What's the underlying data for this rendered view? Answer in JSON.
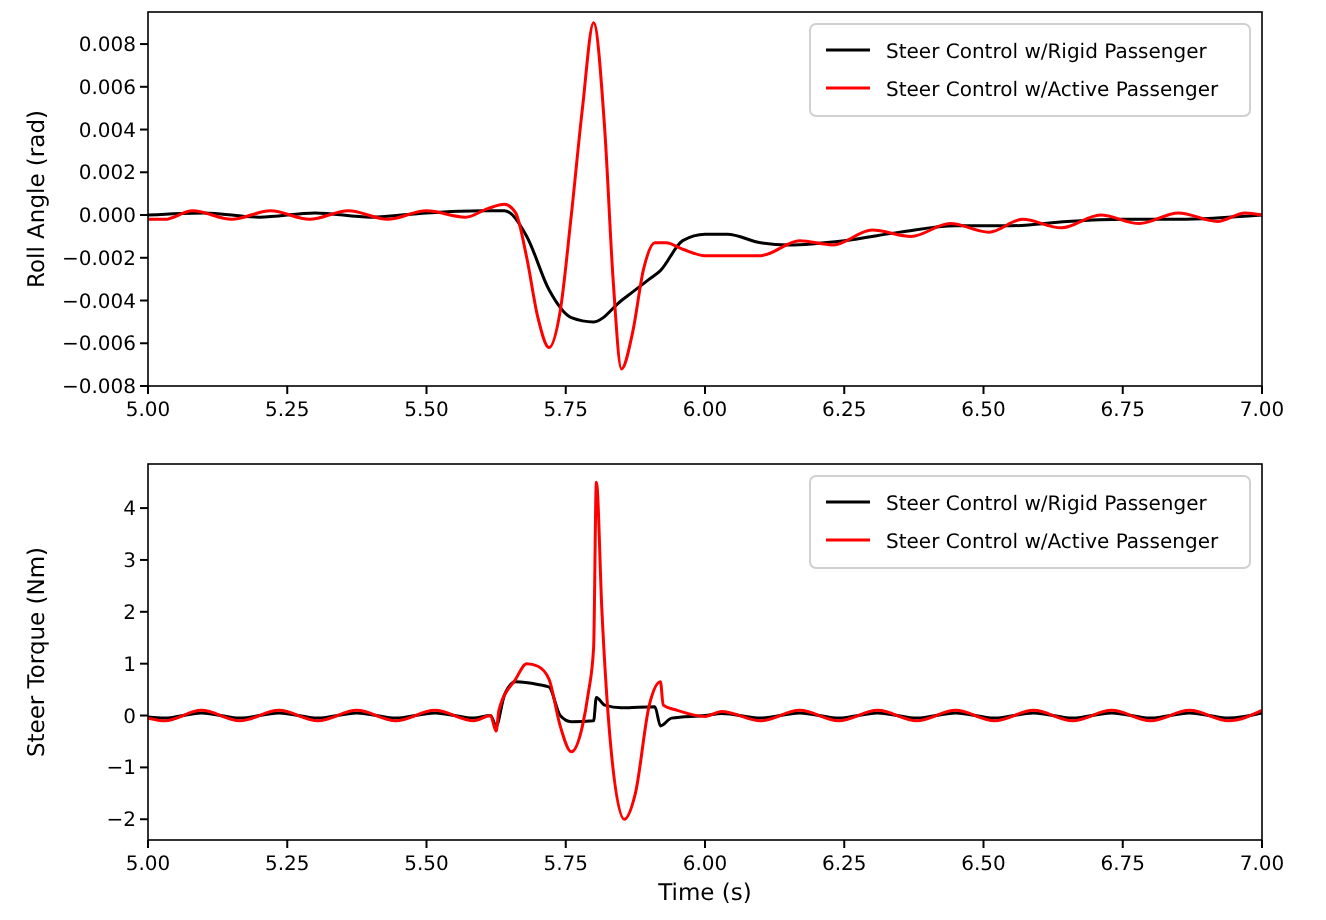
{
  "chart_data": [
    {
      "type": "line",
      "ylabel": "Roll Angle (rad)",
      "xlim": [
        5.0,
        7.0
      ],
      "xticks": [
        {
          "value": 5.0,
          "label": "5.00"
        },
        {
          "value": 5.25,
          "label": "5.25"
        },
        {
          "value": 5.5,
          "label": "5.50"
        },
        {
          "value": 5.75,
          "label": "5.75"
        },
        {
          "value": 6.0,
          "label": "6.00"
        },
        {
          "value": 6.25,
          "label": "6.25"
        },
        {
          "value": 6.5,
          "label": "6.50"
        },
        {
          "value": 6.75,
          "label": "6.75"
        },
        {
          "value": 7.0,
          "label": "7.00"
        }
      ],
      "ylim": [
        -0.008,
        0.0095
      ],
      "yticks": [
        {
          "value": -0.008,
          "label": "−0.008"
        },
        {
          "value": -0.006,
          "label": "−0.006"
        },
        {
          "value": -0.004,
          "label": "−0.004"
        },
        {
          "value": -0.002,
          "label": "−0.002"
        },
        {
          "value": 0,
          "label": "0.000"
        },
        {
          "value": 0.002,
          "label": "0.002"
        },
        {
          "value": 0.004,
          "label": "0.004"
        },
        {
          "value": 0.006,
          "label": "0.006"
        },
        {
          "value": 0.008,
          "label": "0.008"
        }
      ],
      "grid": false,
      "legend": "top right",
      "line_style": "solid",
      "series": [
        {
          "name": "Steer Control w/Rigid Passenger",
          "color": "#000000",
          "x": [
            5.0,
            5.1,
            5.2,
            5.3,
            5.4,
            5.5,
            5.6,
            5.64,
            5.68,
            5.72,
            5.76,
            5.8,
            5.85,
            5.9,
            5.92,
            5.96,
            6.0,
            6.04,
            6.1,
            6.15,
            6.25,
            6.35,
            6.45,
            6.55,
            6.65,
            6.75,
            6.85,
            7.0
          ],
          "values": [
            0,
            0.0001,
            -0.0001,
            0.0001,
            -0.0001,
            0.0001,
            0.0002,
            0.0002,
            -0.001,
            -0.0035,
            -0.0048,
            -0.005,
            -0.004,
            -0.003,
            -0.0026,
            -0.0012,
            -0.0009,
            -0.0009,
            -0.0013,
            -0.0014,
            -0.0012,
            -0.0008,
            -0.0005,
            -0.0005,
            -0.0003,
            -0.0002,
            -0.0002,
            0
          ]
        },
        {
          "name": "Steer Control w/Active Passenger",
          "color": "#ff0000",
          "x": [
            5.0,
            5.03,
            5.08,
            5.15,
            5.22,
            5.29,
            5.36,
            5.43,
            5.5,
            5.57,
            5.61,
            5.64,
            5.66,
            5.68,
            5.7,
            5.72,
            5.74,
            5.76,
            5.78,
            5.8,
            5.82,
            5.835,
            5.85,
            5.87,
            5.89,
            5.91,
            5.93,
            5.96,
            6.0,
            6.1,
            6.17,
            6.23,
            6.3,
            6.37,
            6.44,
            6.51,
            6.57,
            6.64,
            6.71,
            6.78,
            6.85,
            6.92,
            6.97,
            7.0
          ],
          "values": [
            -0.0002,
            -0.0002,
            0.0002,
            -0.0002,
            0.0002,
            -0.0002,
            0.0002,
            -0.0002,
            0.0002,
            -0.0001,
            0.0003,
            0.0005,
            0.0001,
            -0.002,
            -0.0048,
            -0.0062,
            -0.0045,
            0.0,
            0.005,
            0.009,
            0.004,
            -0.003,
            -0.0072,
            -0.0055,
            -0.0025,
            -0.0013,
            -0.0013,
            -0.0016,
            -0.0019,
            -0.0019,
            -0.0012,
            -0.0014,
            -0.0007,
            -0.001,
            -0.0004,
            -0.0008,
            -0.0002,
            -0.0006,
            0.0,
            -0.0004,
            0.0001,
            -0.0003,
            0.0001,
            0.0
          ]
        }
      ]
    },
    {
      "type": "line",
      "xlabel": "Time (s)",
      "ylabel": "Steer Torque (Nm)",
      "xlim": [
        5.0,
        7.0
      ],
      "xticks": [
        {
          "value": 5.0,
          "label": "5.00"
        },
        {
          "value": 5.25,
          "label": "5.25"
        },
        {
          "value": 5.5,
          "label": "5.50"
        },
        {
          "value": 5.75,
          "label": "5.75"
        },
        {
          "value": 6.0,
          "label": "6.00"
        },
        {
          "value": 6.25,
          "label": "6.25"
        },
        {
          "value": 6.5,
          "label": "6.50"
        },
        {
          "value": 6.75,
          "label": "6.75"
        },
        {
          "value": 7.0,
          "label": "7.00"
        }
      ],
      "ylim": [
        -2.4,
        4.85
      ],
      "yticks": [
        {
          "value": -2,
          "label": "−2"
        },
        {
          "value": -1,
          "label": "−1"
        },
        0,
        1,
        2,
        3,
        4
      ],
      "grid": false,
      "legend": "top right",
      "line_style": "solid",
      "series": [
        {
          "name": "Steer Control w/Rigid Passenger",
          "color": "#000000",
          "x": [
            5.0,
            5.03,
            5.096,
            5.165,
            5.235,
            5.305,
            5.375,
            5.445,
            5.515,
            5.585,
            5.615,
            5.625,
            5.64,
            5.66,
            5.7,
            5.72,
            5.74,
            5.76,
            5.8,
            5.805,
            5.82,
            5.85,
            5.91,
            5.92,
            5.94,
            6.0,
            6.03,
            6.1,
            6.17,
            6.24,
            6.31,
            6.38,
            6.45,
            6.52,
            6.59,
            6.66,
            6.73,
            6.8,
            6.87,
            6.94,
            7.0
          ],
          "values": [
            -0.03,
            -0.05,
            0.05,
            -0.05,
            0.05,
            -0.05,
            0.05,
            -0.05,
            0.05,
            -0.05,
            0.0,
            -0.2,
            0.4,
            0.65,
            0.6,
            0.55,
            0.0,
            -0.12,
            -0.1,
            0.35,
            0.2,
            0.15,
            0.17,
            -0.2,
            -0.05,
            0.0,
            0.04,
            -0.05,
            0.05,
            -0.05,
            0.05,
            -0.05,
            0.05,
            -0.05,
            0.05,
            -0.05,
            0.05,
            -0.05,
            0.05,
            -0.05,
            0.05
          ]
        },
        {
          "name": "Steer Control w/Active Passenger",
          "color": "#ff0000",
          "x": [
            5.0,
            5.03,
            5.096,
            5.165,
            5.235,
            5.305,
            5.375,
            5.445,
            5.515,
            5.585,
            5.615,
            5.625,
            5.63,
            5.66,
            5.68,
            5.7,
            5.72,
            5.74,
            5.76,
            5.78,
            5.79,
            5.8,
            5.805,
            5.815,
            5.83,
            5.855,
            5.875,
            5.9,
            5.92,
            5.925,
            5.95,
            6.0,
            6.03,
            6.1,
            6.17,
            6.24,
            6.31,
            6.38,
            6.45,
            6.52,
            6.59,
            6.66,
            6.73,
            6.8,
            6.87,
            6.94,
            7.0
          ],
          "values": [
            -0.05,
            -0.1,
            0.1,
            -0.1,
            0.1,
            -0.1,
            0.1,
            -0.1,
            0.1,
            -0.1,
            0.0,
            -0.3,
            0.1,
            0.7,
            1.0,
            0.95,
            0.7,
            -0.2,
            -0.7,
            -0.2,
            0.4,
            1.3,
            4.5,
            2.0,
            -0.5,
            -2.0,
            -1.5,
            0.2,
            0.65,
            0.2,
            0.1,
            -0.02,
            0.08,
            -0.1,
            0.1,
            -0.1,
            0.1,
            -0.1,
            0.1,
            -0.1,
            0.1,
            -0.1,
            0.1,
            -0.1,
            0.1,
            -0.1,
            0.1
          ]
        }
      ]
    }
  ]
}
